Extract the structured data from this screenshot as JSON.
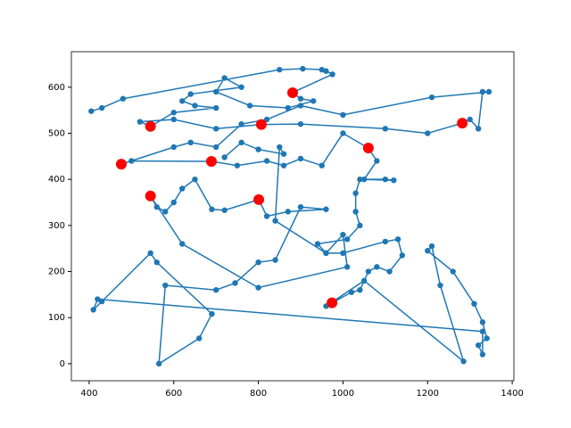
{
  "chart_data": {
    "type": "line",
    "xlim": [
      358,
      1404
    ],
    "ylim": [
      -37,
      677
    ],
    "xticks": [
      400,
      600,
      800,
      1000,
      1200,
      1400
    ],
    "yticks": [
      0,
      100,
      200,
      300,
      400,
      500,
      600
    ],
    "grid": false,
    "series": [
      {
        "color": "#1f77b4",
        "marker": "o",
        "linestyle": "solid",
        "x": [
          405,
          430,
          480,
          850,
          905,
          950,
          960,
          975,
          880,
          900,
          930,
          870,
          780,
          700,
          720,
          760,
          640,
          620,
          650,
          700,
          600,
          545,
          520,
          600,
          700,
          807,
          900,
          1100,
          1200,
          1282,
          1300,
          1320,
          1330,
          1345,
          1210,
          1000,
          900,
          820,
          760,
          700,
          640,
          600,
          476,
          500,
          689,
          750,
          820,
          860,
          900,
          950,
          1000,
          1060,
          1080,
          1050,
          1100,
          1120,
          1040,
          1030,
          1030,
          1040,
          1010,
          940,
          960,
          1000,
          1100,
          1130,
          1140,
          1110,
          1080,
          1060,
          1040,
          1020,
          974,
          960,
          1050,
          1285,
          1230,
          1210,
          1200,
          1260,
          1310,
          1330,
          1340,
          1320,
          1330,
          1330,
          420,
          410,
          430,
          545,
          560,
          690,
          660,
          565,
          580,
          700,
          745,
          800,
          840,
          900,
          960,
          870,
          820,
          801,
          720,
          690,
          650,
          620,
          600,
          580,
          560,
          545,
          620,
          800,
          1010,
          1000,
          960,
          840,
          850,
          860,
          800,
          760,
          720
        ],
        "values": [
          548,
          555,
          575,
          638,
          640,
          638,
          635,
          628,
          588,
          575,
          570,
          555,
          560,
          590,
          620,
          600,
          585,
          570,
          560,
          555,
          545,
          515,
          525,
          530,
          510,
          519,
          520,
          510,
          500,
          522,
          530,
          510,
          590,
          590,
          578,
          540,
          560,
          530,
          520,
          470,
          480,
          470,
          433,
          440,
          439,
          430,
          440,
          430,
          445,
          430,
          500,
          468,
          440,
          400,
          400,
          398,
          400,
          370,
          330,
          300,
          270,
          260,
          240,
          240,
          265,
          270,
          235,
          200,
          210,
          200,
          160,
          155,
          132,
          125,
          180,
          5,
          170,
          255,
          245,
          200,
          130,
          90,
          55,
          40,
          20,
          70,
          140,
          117,
          135,
          240,
          220,
          108,
          55,
          0,
          170,
          160,
          175,
          220,
          225,
          340,
          335,
          330,
          320,
          356,
          333,
          335,
          400,
          380,
          350,
          330,
          340,
          364,
          260,
          165,
          210,
          280,
          240,
          310,
          470,
          455,
          465,
          480,
          448
        ]
      },
      {
        "color": "#ff0000",
        "marker": "o",
        "linestyle": "none",
        "x": [
          545,
          807,
          881,
          1282,
          476,
          689,
          1060,
          545,
          801,
          974
        ],
        "values": [
          515,
          519,
          588,
          522,
          433,
          439,
          468,
          364,
          356,
          132
        ]
      }
    ]
  }
}
